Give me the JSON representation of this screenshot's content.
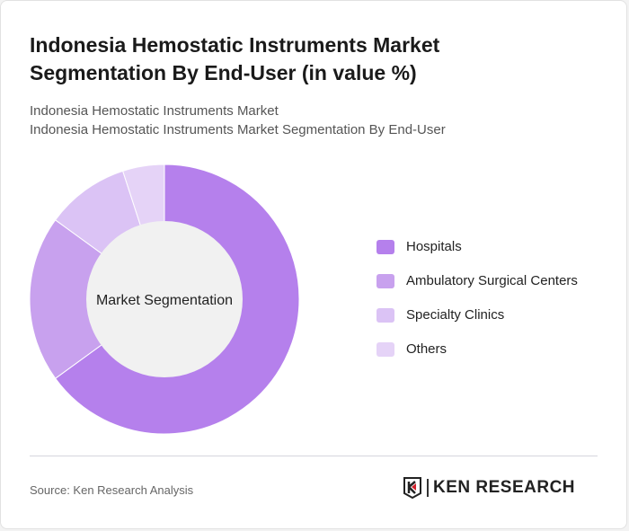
{
  "title": "Indonesia Hemostatic Instruments Market Segmentation By End-User (in value %)",
  "subtitle1": "Indonesia Hemostatic Instruments Market",
  "subtitle2": "Indonesia Hemostatic Instruments Market Segmentation By End-User",
  "source": "Source: Ken Research Analysis",
  "logo_text": "KEN RESEARCH",
  "chart_data": {
    "type": "pie",
    "variant": "donut",
    "center_label": "Market Segmentation",
    "categories": [
      "Hospitals",
      "Ambulatory Surgical Centers",
      "Specialty Clinics",
      "Others"
    ],
    "values": [
      65,
      20,
      10,
      5
    ],
    "unit": "%",
    "colors": [
      "#b580ec",
      "#c8a1ee",
      "#dbc3f5",
      "#e5d3f7"
    ],
    "legend_position": "right"
  }
}
